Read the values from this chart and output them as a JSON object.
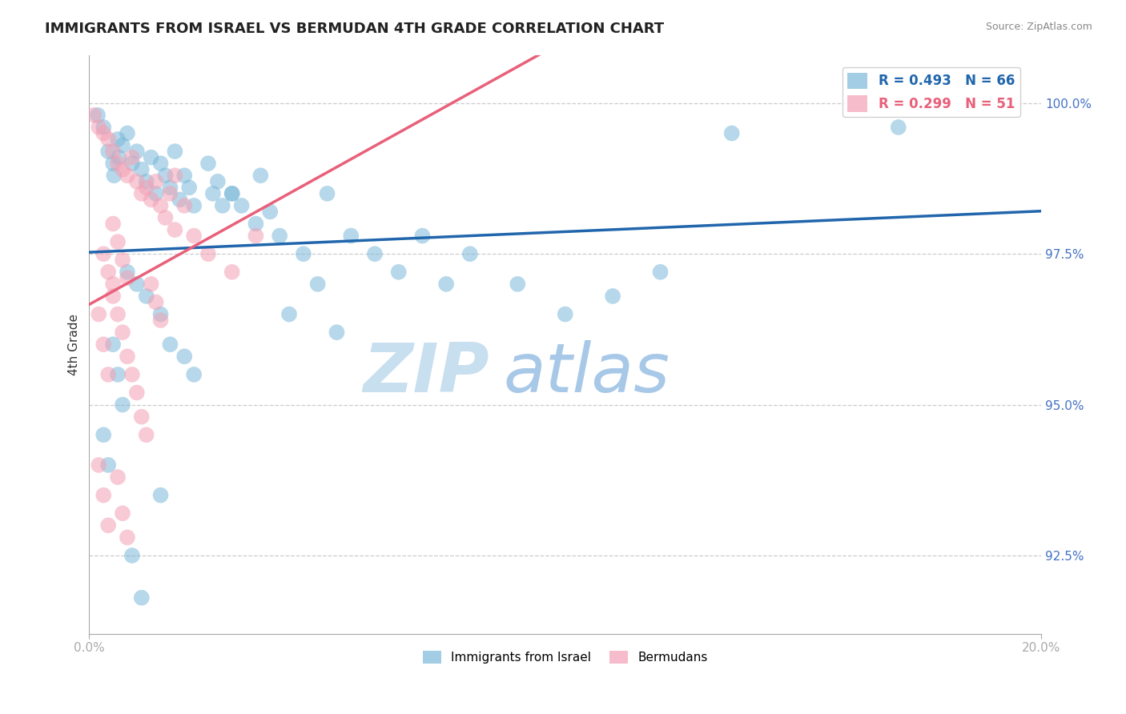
{
  "title": "IMMIGRANTS FROM ISRAEL VS BERMUDAN 4TH GRADE CORRELATION CHART",
  "source": "Source: ZipAtlas.com",
  "ylabel": "4th Grade",
  "x_min": 0.0,
  "x_max": 20.0,
  "y_min": 91.2,
  "y_max": 100.8,
  "y_ticks": [
    92.5,
    95.0,
    97.5,
    100.0
  ],
  "R_blue": 0.493,
  "N_blue": 66,
  "R_pink": 0.299,
  "N_pink": 51,
  "blue_color": "#7bb8d9",
  "pink_color": "#f4a0b5",
  "blue_line_color": "#2166ac",
  "pink_line_color": "#e8607a",
  "blue_scatter_x": [
    0.18,
    0.3,
    0.4,
    0.5,
    0.52,
    0.6,
    0.62,
    0.7,
    0.8,
    0.9,
    1.0,
    1.1,
    1.2,
    1.3,
    1.4,
    1.5,
    1.6,
    1.7,
    1.8,
    1.9,
    2.0,
    2.1,
    2.2,
    2.5,
    2.6,
    2.7,
    3.0,
    3.2,
    3.5,
    3.6,
    3.8,
    4.0,
    4.5,
    5.0,
    5.5,
    6.0,
    6.5,
    7.0,
    7.5,
    8.0,
    1.5,
    1.7,
    2.0,
    2.2,
    1.0,
    1.2,
    0.8,
    0.5,
    0.6,
    0.7,
    0.3,
    0.4,
    1.5,
    17.0,
    13.5,
    9.0,
    10.0,
    11.0,
    12.0,
    0.9,
    1.1,
    4.2,
    4.8,
    5.2,
    3.0,
    2.8
  ],
  "blue_scatter_y": [
    99.8,
    99.6,
    99.2,
    99.0,
    98.8,
    99.4,
    99.1,
    99.3,
    99.5,
    99.0,
    99.2,
    98.9,
    98.7,
    99.1,
    98.5,
    99.0,
    98.8,
    98.6,
    99.2,
    98.4,
    98.8,
    98.6,
    98.3,
    99.0,
    98.5,
    98.7,
    98.5,
    98.3,
    98.0,
    98.8,
    98.2,
    97.8,
    97.5,
    98.5,
    97.8,
    97.5,
    97.2,
    97.8,
    97.0,
    97.5,
    96.5,
    96.0,
    95.8,
    95.5,
    97.0,
    96.8,
    97.2,
    96.0,
    95.5,
    95.0,
    94.5,
    94.0,
    93.5,
    99.6,
    99.5,
    97.0,
    96.5,
    96.8,
    97.2,
    92.5,
    91.8,
    96.5,
    97.0,
    96.2,
    98.5,
    98.3
  ],
  "pink_scatter_x": [
    0.1,
    0.2,
    0.3,
    0.4,
    0.5,
    0.6,
    0.7,
    0.8,
    0.9,
    1.0,
    1.1,
    1.2,
    1.3,
    1.4,
    1.5,
    1.6,
    1.7,
    1.8,
    2.0,
    2.2,
    0.3,
    0.4,
    0.5,
    0.6,
    0.7,
    0.8,
    0.9,
    1.0,
    1.1,
    1.2,
    0.2,
    0.3,
    0.4,
    0.5,
    0.6,
    0.7,
    0.8,
    1.3,
    1.4,
    1.5,
    2.5,
    3.0,
    3.5,
    0.2,
    0.3,
    0.4,
    0.6,
    0.7,
    0.8,
    1.8,
    0.5
  ],
  "pink_scatter_y": [
    99.8,
    99.6,
    99.5,
    99.4,
    99.2,
    99.0,
    98.9,
    98.8,
    99.1,
    98.7,
    98.5,
    98.6,
    98.4,
    98.7,
    98.3,
    98.1,
    98.5,
    97.9,
    98.3,
    97.8,
    97.5,
    97.2,
    96.8,
    96.5,
    96.2,
    95.8,
    95.5,
    95.2,
    94.8,
    94.5,
    94.0,
    93.5,
    93.0,
    98.0,
    97.7,
    97.4,
    97.1,
    97.0,
    96.7,
    96.4,
    97.5,
    97.2,
    97.8,
    96.5,
    96.0,
    95.5,
    93.8,
    93.2,
    92.8,
    98.8,
    97.0
  ],
  "background_color": "#ffffff",
  "grid_color": "#cccccc",
  "watermark_zip": "ZIP",
  "watermark_atlas": "atlas",
  "watermark_color_zip": "#c8dff0",
  "watermark_color_atlas": "#a8c8e8"
}
